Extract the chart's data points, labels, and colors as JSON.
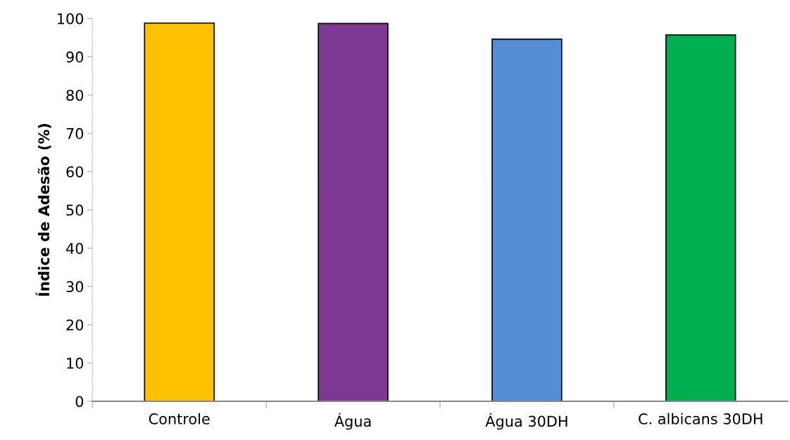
{
  "chart_data": {
    "type": "bar",
    "ylabel": "Índice de Adesão (%)",
    "categories": [
      "Controle",
      "Água",
      "Água 30DH",
      "C. albicans 30DH"
    ],
    "values": [
      98.8,
      98.7,
      94.6,
      95.7
    ],
    "colors": [
      "#ffc000",
      "#7d3894",
      "#558ed5",
      "#00b050"
    ],
    "ylim": [
      0,
      100
    ],
    "yticks": [
      0,
      10,
      20,
      30,
      40,
      50,
      60,
      70,
      80,
      90,
      100
    ],
    "grid": false
  }
}
